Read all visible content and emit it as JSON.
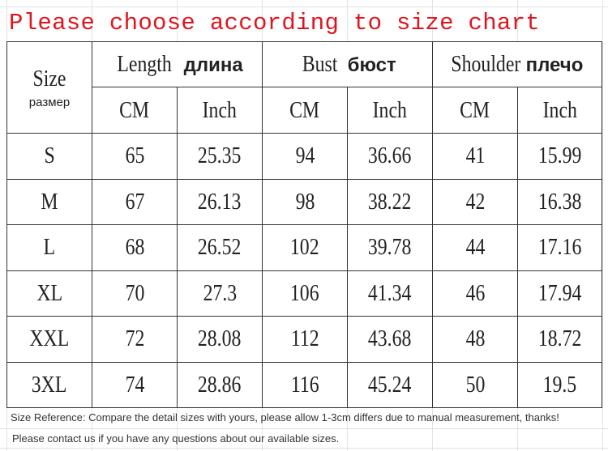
{
  "title": "Please choose according to size chart",
  "table": {
    "size_header": {
      "en": "Size",
      "ru": "размер"
    },
    "groups": [
      {
        "en": "Length",
        "ru": "длина"
      },
      {
        "en": "Bust",
        "ru": "бюст"
      },
      {
        "en": "Shoulder",
        "ru": "плечо"
      }
    ],
    "units": [
      "CM",
      "Inch",
      "CM",
      "Inch",
      "CM",
      "Inch"
    ],
    "rows": [
      {
        "size": "S",
        "values": [
          "65",
          "25.35",
          "94",
          "36.66",
          "41",
          "15.99"
        ]
      },
      {
        "size": "M",
        "values": [
          "67",
          "26.13",
          "98",
          "38.22",
          "42",
          "16.38"
        ]
      },
      {
        "size": "L",
        "values": [
          "68",
          "26.52",
          "102",
          "39.78",
          "44",
          "17.16"
        ]
      },
      {
        "size": "XL",
        "values": [
          "70",
          "27.3",
          "106",
          "41.34",
          "46",
          "17.94"
        ]
      },
      {
        "size": "XXL",
        "values": [
          "72",
          "28.08",
          "112",
          "43.68",
          "48",
          "18.72"
        ]
      },
      {
        "size": "3XL",
        "values": [
          "74",
          "28.86",
          "116",
          "45.24",
          "50",
          "19.5"
        ]
      }
    ]
  },
  "notes": [
    "Size Reference: Compare the detail sizes with yours, please allow 1-3cm differs due to manual measurement, thanks!",
    "Please contact us if you have any questions about our available sizes."
  ],
  "colors": {
    "title": "#e0141e",
    "border": "#333333",
    "grid": "#e0e0e0"
  }
}
